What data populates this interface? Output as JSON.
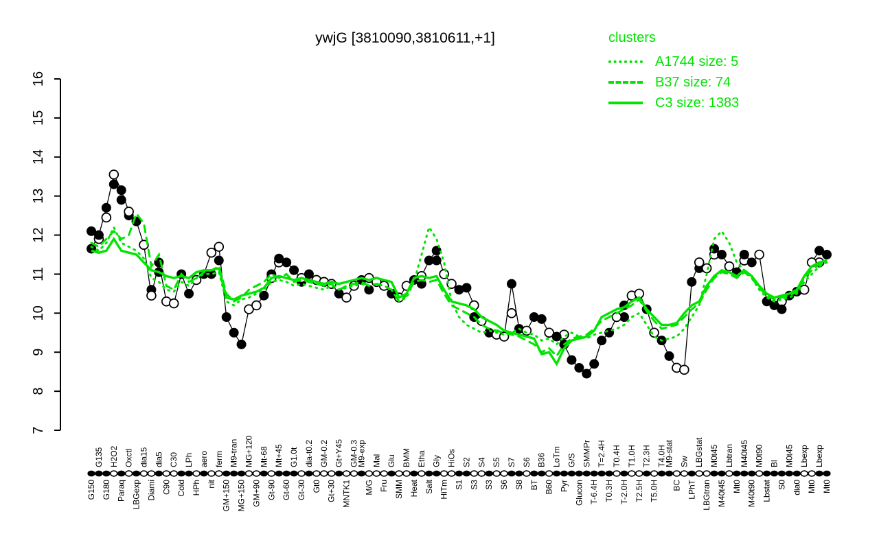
{
  "title": "ywjG [3810090,3810611,+1]",
  "colors": {
    "cluster_green": "#00e400",
    "profile_black": "#000000",
    "open_point_fill": "#ffffff"
  },
  "legend": {
    "title": "clusters",
    "items": [
      {
        "label": "A1744 size: 5",
        "style": "dotted"
      },
      {
        "label": "B37 size: 74",
        "style": "dashed"
      },
      {
        "label": "C3 size: 1383",
        "style": "solid"
      }
    ]
  },
  "chart_data": {
    "type": "line",
    "title": "ywjG [3810090,3810611,+1]",
    "xlabel": "",
    "ylabel": "",
    "ylim": [
      7,
      16
    ],
    "yticks": [
      7,
      8,
      9,
      10,
      11,
      12,
      13,
      14,
      15,
      16
    ],
    "grid": false,
    "legend_position": "top-right",
    "x_categories_note": "experimental conditions; row t = label above axis, row b = label below axis; fill f = filled point, o = open point",
    "conditions": [
      {
        "l": "G150",
        "r": "b",
        "y": 11.65,
        "f": "f"
      },
      {
        "l": "G135",
        "r": "t",
        "y": 12.0,
        "f": "f"
      },
      {
        "l": "G180",
        "r": "b",
        "y": 12.7,
        "f": "f"
      },
      {
        "l": "H2O2",
        "r": "t",
        "y": 13.55,
        "f": "o"
      },
      {
        "l": "Paraq",
        "r": "b",
        "y": 13.15,
        "f": "f"
      },
      {
        "l": "Oxctl",
        "r": "t",
        "y": 12.6,
        "f": "o"
      },
      {
        "l": "LBGexp",
        "r": "b",
        "y": 12.35,
        "f": "f"
      },
      {
        "l": "dia15",
        "r": "t",
        "y": 11.75,
        "f": "o"
      },
      {
        "l": "Diami",
        "r": "b",
        "y": 10.45,
        "f": "o"
      },
      {
        "l": "dia5",
        "r": "t",
        "y": 11.3,
        "f": "f"
      },
      {
        "l": "C90",
        "r": "b",
        "y": 10.3,
        "f": "o"
      },
      {
        "l": "C30",
        "r": "t",
        "y": 10.25,
        "f": "o"
      },
      {
        "l": "Cold",
        "r": "b",
        "y": 11.0,
        "f": "f"
      },
      {
        "l": "LPh",
        "r": "t",
        "y": 10.5,
        "f": "f"
      },
      {
        "l": "HPh",
        "r": "b",
        "y": 10.85,
        "f": "o"
      },
      {
        "l": "aero",
        "r": "t",
        "y": 11.0,
        "f": "f"
      },
      {
        "l": "nit",
        "r": "b",
        "y": 11.55,
        "f": "o"
      },
      {
        "l": "ferm",
        "r": "t",
        "y": 11.7,
        "f": "o"
      },
      {
        "l": "GM+150",
        "r": "b",
        "y": 9.9,
        "f": "f"
      },
      {
        "l": "M9-tran",
        "r": "t",
        "y": 9.5,
        "f": "f"
      },
      {
        "l": "MG+150",
        "r": "b",
        "y": 9.2,
        "f": "f"
      },
      {
        "l": "MG+120",
        "r": "t",
        "y": 10.1,
        "f": "o"
      },
      {
        "l": "GM+90",
        "r": "b",
        "y": 10.2,
        "f": "o"
      },
      {
        "l": "Mt-68",
        "r": "t",
        "y": 10.45,
        "f": "f"
      },
      {
        "l": "Gt-90",
        "r": "b",
        "y": 10.9,
        "f": "o"
      },
      {
        "l": "Mt+45",
        "r": "t",
        "y": 11.4,
        "f": "f"
      },
      {
        "l": "Gt-60",
        "r": "b",
        "y": 11.3,
        "f": "f"
      },
      {
        "l": "G1.0t",
        "r": "t",
        "y": 11.1,
        "f": "f"
      },
      {
        "l": "Gt-30",
        "r": "b",
        "y": 10.9,
        "f": "o"
      },
      {
        "l": "dia-t0.2",
        "r": "t",
        "y": 11.0,
        "f": "f"
      },
      {
        "l": "Gt0",
        "r": "b",
        "y": 10.85,
        "f": "o"
      },
      {
        "l": "GM-0.2",
        "r": "t",
        "y": 10.8,
        "f": "o"
      },
      {
        "l": "Gt+30",
        "r": "b",
        "y": 10.75,
        "f": "o"
      },
      {
        "l": "Gt+Y45",
        "r": "t",
        "y": 10.5,
        "f": "f"
      },
      {
        "l": "MNTK1",
        "r": "b",
        "y": 10.4,
        "f": "o"
      },
      {
        "l": "GM-0.3",
        "r": "t",
        "y": 10.7,
        "f": "o"
      },
      {
        "l": "M9-exp",
        "r": "t",
        "y": 10.85,
        "f": "f"
      },
      {
        "l": "M/G",
        "r": "b",
        "y": 10.9,
        "f": "o"
      },
      {
        "l": "Mal",
        "r": "t",
        "y": 10.8,
        "f": "o"
      },
      {
        "l": "Fru",
        "r": "b",
        "y": 10.7,
        "f": "o"
      },
      {
        "l": "Glu",
        "r": "t",
        "y": 10.5,
        "f": "f"
      },
      {
        "l": "SMM",
        "r": "b",
        "y": 10.4,
        "f": "o"
      },
      {
        "l": "BMM",
        "r": "t",
        "y": 10.7,
        "f": "o"
      },
      {
        "l": "Heat",
        "r": "b",
        "y": 10.85,
        "f": "f"
      },
      {
        "l": "Etha",
        "r": "t",
        "y": 10.95,
        "f": "o"
      },
      {
        "l": "Salt",
        "r": "b",
        "y": 11.35,
        "f": "f"
      },
      {
        "l": "Gly",
        "r": "t",
        "y": 11.6,
        "f": "f"
      },
      {
        "l": "HiTm",
        "r": "b",
        "y": 11.0,
        "f": "o"
      },
      {
        "l": "HiOs",
        "r": "t",
        "y": 10.75,
        "f": "o"
      },
      {
        "l": "S1",
        "r": "b",
        "y": 10.6,
        "f": "f"
      },
      {
        "l": "S2",
        "r": "t",
        "y": 10.65,
        "f": "f"
      },
      {
        "l": "S3",
        "r": "b",
        "y": 10.2,
        "f": "o"
      },
      {
        "l": "S4",
        "r": "t",
        "y": 9.8,
        "f": "o"
      },
      {
        "l": "S3",
        "r": "b",
        "y": 9.5,
        "f": "f"
      },
      {
        "l": "S5",
        "r": "t",
        "y": 9.45,
        "f": "o"
      },
      {
        "l": "S6",
        "r": "b",
        "y": 9.4,
        "f": "o"
      },
      {
        "l": "S7",
        "r": "t",
        "y": 10.75,
        "f": "f"
      },
      {
        "l": "S8",
        "r": "b",
        "y": 9.6,
        "f": "f"
      },
      {
        "l": "S6",
        "r": "t",
        "y": 9.55,
        "f": "o"
      },
      {
        "l": "BT",
        "r": "b",
        "y": 9.9,
        "f": "f"
      },
      {
        "l": "B36",
        "r": "t",
        "y": 9.85,
        "f": "f"
      },
      {
        "l": "B60",
        "r": "b",
        "y": 9.5,
        "f": "o"
      },
      {
        "l": "LoTm",
        "r": "t",
        "y": 9.4,
        "f": "f"
      },
      {
        "l": "Pyr",
        "r": "b",
        "y": 9.2,
        "f": "f"
      },
      {
        "l": "G/S",
        "r": "t",
        "y": 8.8,
        "f": "f"
      },
      {
        "l": "Glucon",
        "r": "b",
        "y": 8.6,
        "f": "f"
      },
      {
        "l": "SMMPr",
        "r": "t",
        "y": 8.45,
        "f": "f"
      },
      {
        "l": "T-6.4H",
        "r": "b",
        "y": 8.7,
        "f": "f"
      },
      {
        "l": "T=2.4H",
        "r": "t",
        "y": 9.3,
        "f": "f"
      },
      {
        "l": "T0.3H",
        "r": "b",
        "y": 9.5,
        "f": "f"
      },
      {
        "l": "T0.4H",
        "r": "t",
        "y": 9.9,
        "f": "o"
      },
      {
        "l": "T-2.0H",
        "r": "b",
        "y": 10.2,
        "f": "f"
      },
      {
        "l": "T1.0H",
        "r": "t",
        "y": 10.45,
        "f": "o"
      },
      {
        "l": "T2.5H",
        "r": "b",
        "y": 10.5,
        "f": "o"
      },
      {
        "l": "T2.3H",
        "r": "t",
        "y": 10.1,
        "f": "f"
      },
      {
        "l": "T5.0H",
        "r": "b",
        "y": 9.5,
        "f": "o"
      },
      {
        "l": "T4.0H",
        "r": "t",
        "y": 9.3,
        "f": "f"
      },
      {
        "l": "M9-stat",
        "r": "t",
        "y": 8.9,
        "f": "f"
      },
      {
        "l": "BC",
        "r": "b",
        "y": 8.6,
        "f": "o"
      },
      {
        "l": "Sw",
        "r": "t",
        "y": 8.55,
        "f": "o"
      },
      {
        "l": "LPhT",
        "r": "b",
        "y": 10.8,
        "f": "f"
      },
      {
        "l": "LBGstat",
        "r": "t",
        "y": 11.3,
        "f": "o"
      },
      {
        "l": "LBGtran",
        "r": "b",
        "y": 11.15,
        "f": "o"
      },
      {
        "l": "M0t45",
        "r": "t",
        "y": 11.65,
        "f": "f"
      },
      {
        "l": "M40t45",
        "r": "b",
        "y": 11.5,
        "f": "f"
      },
      {
        "l": "Lbtran",
        "r": "t",
        "y": 11.2,
        "f": "o"
      },
      {
        "l": "Mt0",
        "r": "b",
        "y": 11.05,
        "f": "f"
      },
      {
        "l": "M40t45",
        "r": "t",
        "y": 11.5,
        "f": "f"
      },
      {
        "l": "M40t90",
        "r": "b",
        "y": 11.3,
        "f": "f"
      },
      {
        "l": "M0t90",
        "r": "t",
        "y": 11.5,
        "f": "o"
      },
      {
        "l": "Lbstat",
        "r": "b",
        "y": 10.3,
        "f": "f"
      },
      {
        "l": "Bl",
        "r": "t",
        "y": 10.2,
        "f": "f"
      },
      {
        "l": "S0",
        "r": "b",
        "y": 10.1,
        "f": "f"
      },
      {
        "l": "M0t45",
        "r": "t",
        "y": 10.45,
        "f": "f"
      },
      {
        "l": "dia0",
        "r": "b",
        "y": 10.55,
        "f": "f"
      },
      {
        "l": "Lbexp",
        "r": "t",
        "y": 10.6,
        "f": "o"
      },
      {
        "l": "Mt0",
        "r": "b",
        "y": 11.3,
        "f": "o"
      },
      {
        "l": "Lbexp",
        "r": "t",
        "y": 11.6,
        "f": "f"
      },
      {
        "l": "Mt0",
        "r": "b",
        "y": 11.5,
        "f": "f"
      }
    ],
    "extra_points": [
      [
        0,
        12.1,
        "f"
      ],
      [
        1,
        11.9,
        "o"
      ],
      [
        2,
        12.45,
        "o"
      ],
      [
        3,
        13.3,
        "f"
      ],
      [
        4,
        12.9,
        "f"
      ],
      [
        5,
        12.5,
        "f"
      ],
      [
        8,
        10.6,
        "f"
      ],
      [
        9,
        11.05,
        "f"
      ],
      [
        16,
        11.0,
        "f"
      ],
      [
        17,
        11.35,
        "f"
      ],
      [
        24,
        11.0,
        "f"
      ],
      [
        25,
        11.3,
        "o"
      ],
      [
        28,
        10.8,
        "f"
      ],
      [
        37,
        10.6,
        "f"
      ],
      [
        44,
        10.75,
        "f"
      ],
      [
        46,
        11.35,
        "f"
      ],
      [
        51,
        9.9,
        "f"
      ],
      [
        56,
        10.0,
        "o"
      ],
      [
        63,
        9.45,
        "o"
      ],
      [
        71,
        9.9,
        "f"
      ],
      [
        81,
        11.15,
        "f"
      ],
      [
        83,
        11.5,
        "o"
      ],
      [
        87,
        11.35,
        "o"
      ],
      [
        92,
        10.3,
        "o"
      ],
      [
        97,
        11.3,
        "o"
      ]
    ],
    "series": [
      {
        "name": "A1744",
        "size": 5,
        "style": "dotted",
        "color": "#00e400",
        "values": [
          11.7,
          11.6,
          11.8,
          12.2,
          11.8,
          11.7,
          11.6,
          11.4,
          10.9,
          10.8,
          10.6,
          10.55,
          10.8,
          10.7,
          10.9,
          11.0,
          11.0,
          11.05,
          10.3,
          10.2,
          10.35,
          10.4,
          10.5,
          10.6,
          10.8,
          10.85,
          10.8,
          10.7,
          10.75,
          10.7,
          10.65,
          10.6,
          10.7,
          10.6,
          10.65,
          10.7,
          10.75,
          10.7,
          10.75,
          10.7,
          10.6,
          10.3,
          10.4,
          10.8,
          11.5,
          12.2,
          11.9,
          11.3,
          10.3,
          9.9,
          9.7,
          9.6,
          9.5,
          9.55,
          9.5,
          9.45,
          9.5,
          9.6,
          9.5,
          9.45,
          9.3,
          9.35,
          9.2,
          9.4,
          9.5,
          9.4,
          9.35,
          9.45,
          9.5,
          9.55,
          9.6,
          9.7,
          9.9,
          10.0,
          9.7,
          9.4,
          9.3,
          9.35,
          9.4,
          9.6,
          9.9,
          10.2,
          11.0,
          11.9,
          12.1,
          11.8,
          11.3,
          11.1,
          10.9,
          10.6,
          10.4,
          10.3,
          10.35,
          10.4,
          10.5,
          10.8,
          11.0,
          11.2,
          11.3
        ]
      },
      {
        "name": "B37",
        "size": 74,
        "style": "dashed",
        "color": "#00e400",
        "values": [
          11.8,
          11.7,
          11.9,
          12.1,
          11.9,
          12.0,
          12.55,
          12.3,
          11.2,
          11.5,
          10.7,
          10.6,
          11.0,
          10.8,
          10.9,
          11.05,
          11.1,
          11.2,
          10.5,
          10.3,
          10.4,
          10.6,
          10.7,
          10.8,
          11.0,
          10.9,
          11.0,
          10.8,
          10.85,
          10.8,
          10.75,
          10.7,
          10.75,
          10.6,
          10.7,
          10.75,
          10.8,
          10.7,
          10.75,
          10.7,
          10.6,
          10.3,
          10.45,
          10.8,
          10.85,
          10.8,
          10.85,
          10.5,
          10.2,
          10.1,
          10.0,
          9.9,
          9.7,
          9.6,
          9.55,
          9.5,
          9.45,
          9.4,
          9.3,
          9.2,
          9.0,
          9.1,
          8.9,
          9.2,
          9.35,
          9.4,
          9.45,
          9.6,
          9.8,
          9.9,
          10.0,
          10.1,
          10.2,
          10.35,
          10.05,
          9.8,
          9.6,
          9.65,
          9.7,
          9.9,
          10.1,
          10.25,
          10.6,
          10.9,
          11.05,
          11.0,
          10.9,
          11.05,
          10.9,
          10.65,
          10.45,
          10.35,
          10.4,
          10.45,
          10.55,
          10.9,
          11.1,
          11.25,
          11.3
        ]
      },
      {
        "name": "C3",
        "size": 1383,
        "style": "solid",
        "color": "#00e400",
        "values": [
          11.6,
          11.55,
          11.6,
          11.9,
          11.6,
          11.55,
          11.5,
          11.3,
          11.1,
          11.05,
          10.95,
          10.9,
          10.95,
          10.9,
          11.05,
          11.1,
          11.1,
          11.15,
          10.4,
          10.35,
          10.45,
          10.5,
          10.55,
          10.65,
          10.9,
          10.95,
          10.9,
          10.85,
          10.9,
          10.85,
          10.8,
          10.75,
          10.8,
          10.75,
          10.8,
          10.85,
          10.9,
          10.85,
          10.9,
          10.85,
          10.8,
          10.4,
          10.5,
          10.9,
          10.95,
          10.9,
          10.95,
          10.6,
          10.3,
          10.25,
          10.2,
          10.1,
          9.9,
          9.8,
          9.7,
          9.55,
          9.5,
          9.45,
          9.4,
          9.35,
          8.95,
          9.0,
          8.7,
          9.1,
          9.3,
          9.35,
          9.4,
          9.55,
          9.9,
          10.0,
          10.1,
          10.15,
          10.3,
          10.4,
          10.1,
          9.9,
          9.7,
          9.7,
          9.75,
          10.0,
          10.2,
          10.3,
          10.7,
          10.95,
          11.1,
          11.05,
          10.95,
          11.1,
          10.95,
          10.7,
          10.5,
          10.4,
          10.45,
          10.5,
          10.6,
          10.95,
          11.2,
          11.3,
          11.35
        ]
      }
    ]
  }
}
